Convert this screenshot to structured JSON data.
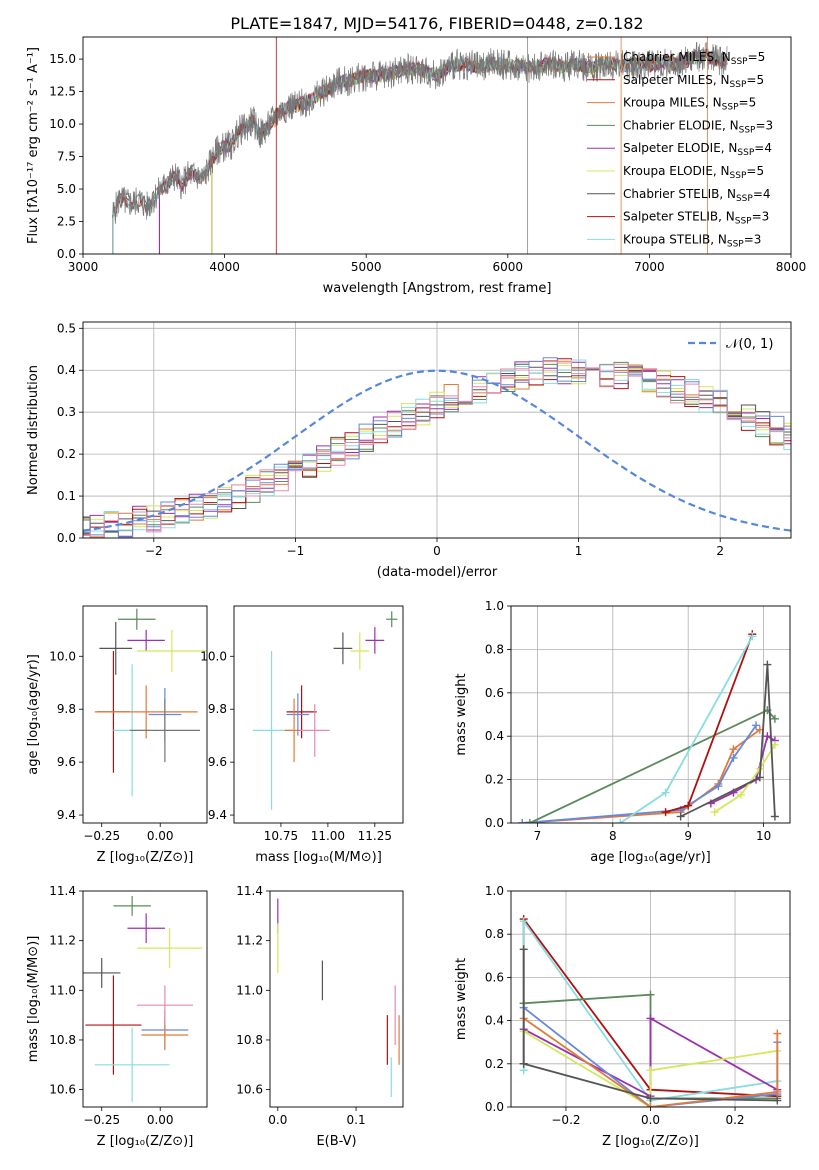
{
  "figure": {
    "title": "PLATE=1847, MJD=54176, FIBERID=0448, z=0.182",
    "colors": [
      "#e07b39",
      "#5b8a5b",
      "#9b30b0",
      "#d4e85a",
      "#555555",
      "#b01010",
      "#88dde0",
      "#6688dd",
      "#e88ab0",
      "#777777"
    ]
  },
  "chart_data": [
    {
      "id": "spectrum",
      "type": "line",
      "title": "PLATE=1847, MJD=54176, FIBERID=0448, z=0.182",
      "xlabel": "wavelength [Angstrom, rest frame]",
      "ylabel": "Flux [fλ10⁻¹⁷ erg cm⁻² s⁻¹ A⁻¹]",
      "xlim": [
        3000,
        8000
      ],
      "ylim": [
        0,
        16.7
      ],
      "xticks": [
        3000,
        4000,
        5000,
        6000,
        7000,
        8000
      ],
      "yticks": [
        0.0,
        2.5,
        5.0,
        7.5,
        10.0,
        12.5,
        15.0
      ],
      "legend_position": "top-right",
      "observed": {
        "x": [
          3210,
          3260,
          3300,
          3350,
          3400,
          3450,
          3500,
          3550,
          3600,
          3650,
          3700,
          3750,
          3800,
          3850,
          3900,
          3950,
          4000,
          4050,
          4100,
          4150,
          4200,
          4250,
          4300,
          4350,
          4400,
          4450,
          4500,
          4600,
          4700,
          4800,
          4900,
          5000,
          5100,
          5200,
          5300,
          5400,
          5500,
          5600,
          5700,
          5800,
          5900,
          6000,
          6100,
          6200,
          6300,
          6400,
          6500,
          6600,
          6700,
          6800,
          6900,
          7000,
          7100,
          7200,
          7300,
          7400,
          7500,
          7550
        ],
        "y": [
          3.0,
          4.3,
          4.0,
          3.9,
          4.2,
          3.6,
          4.3,
          5.0,
          5.5,
          6.0,
          5.3,
          6.2,
          6.0,
          5.8,
          7.0,
          8.0,
          8.3,
          8.4,
          9.5,
          9.7,
          10.3,
          9.2,
          9.7,
          10.5,
          11.0,
          11.4,
          11.4,
          11.8,
          12.5,
          13.2,
          13.4,
          13.7,
          13.7,
          14.0,
          14.3,
          14.1,
          13.8,
          14.5,
          14.6,
          14.4,
          14.7,
          14.5,
          14.4,
          14.3,
          14.7,
          14.4,
          14.6,
          14.3,
          14.7,
          14.5,
          14.6,
          14.5,
          14.8,
          14.6,
          15.0,
          15.3,
          14.8,
          15.0
        ]
      },
      "series": [
        {
          "name": "Chabrier MILES, N_SSP=5",
          "start": 3540
        },
        {
          "name": "Salpeter MILES, N_SSP=5",
          "start": 3540
        },
        {
          "name": "Kroupa MILES, N_SSP=5",
          "start": 3540
        },
        {
          "name": "Chabrier ELODIE, N_SSP=3",
          "start": 3910
        },
        {
          "name": "Salpeter ELODIE, N_SSP=4",
          "start": 3910
        },
        {
          "name": "Kroupa ELODIE, N_SSP=5",
          "start": 3910
        },
        {
          "name": "Chabrier STELIB, N_SSP=4",
          "start": 3210
        },
        {
          "name": "Salpeter STELIB, N_SSP=3",
          "start": 3210
        },
        {
          "name": "Kroupa STELIB, N_SSP=3",
          "start": 3210
        }
      ]
    },
    {
      "id": "residuals",
      "type": "step",
      "xlabel": "(data-model)/error",
      "ylabel": "Normed distribution",
      "xlim": [
        -2.5,
        2.5
      ],
      "ylim": [
        0,
        0.515
      ],
      "xticks": [
        -2,
        -1,
        0,
        1,
        2
      ],
      "yticks": [
        0.0,
        0.1,
        0.2,
        0.3,
        0.4,
        0.5
      ],
      "grid": true,
      "legend_position": "top-right",
      "legend": "𝒩(0, 1)",
      "bin_width": 0.1,
      "base": [
        0.025,
        0.028,
        0.032,
        0.036,
        0.041,
        0.047,
        0.054,
        0.062,
        0.071,
        0.081,
        0.092,
        0.103,
        0.116,
        0.129,
        0.143,
        0.158,
        0.173,
        0.189,
        0.206,
        0.222,
        0.239,
        0.256,
        0.272,
        0.288,
        0.304,
        0.319,
        0.333,
        0.346,
        0.357,
        0.368,
        0.377,
        0.385,
        0.391,
        0.395,
        0.398,
        0.399,
        0.398,
        0.395,
        0.391,
        0.385,
        0.377,
        0.368,
        0.357,
        0.346,
        0.333,
        0.319,
        0.304,
        0.288,
        0.272,
        0.256,
        0.239,
        0.222,
        0.206,
        0.189,
        0.173,
        0.158,
        0.143,
        0.129,
        0.116,
        0.103,
        0.092,
        0.081,
        0.071,
        0.062,
        0.054,
        0.047,
        0.041,
        0.036,
        0.032,
        0.028,
        0.025
      ]
    },
    {
      "id": "age-vs-z",
      "type": "scatter-errorbar",
      "xlabel": "Z [log₁₀(Z/Z⊙)]",
      "ylabel": "age  [log₁₀(age/yr)]",
      "xlim": [
        -0.33,
        0.2
      ],
      "ylim": [
        9.37,
        10.19
      ],
      "xticks": [
        -0.25,
        0.0
      ],
      "yticks": [
        9.4,
        9.6,
        9.8,
        10.0
      ],
      "points": [
        {
          "x": -0.19,
          "y": 10.03,
          "xerr": 0.07,
          "yerr": 0.1,
          "c": 4
        },
        {
          "x": -0.1,
          "y": 10.14,
          "xerr": 0.08,
          "yerr": 0.04,
          "c": 1
        },
        {
          "x": -0.06,
          "y": 10.06,
          "xerr": 0.08,
          "yerr": 0.04,
          "c": 2
        },
        {
          "x": 0.05,
          "y": 10.02,
          "xerr": 0.15,
          "yerr": 0.08,
          "c": 3
        },
        {
          "x": -0.2,
          "y": 9.79,
          "xerr": 0.07,
          "yerr": 0.23,
          "c": 5
        },
        {
          "x": -0.12,
          "y": 9.72,
          "xerr": 0.08,
          "yerr": 0.25,
          "c": 6
        },
        {
          "x": 0.02,
          "y": 9.78,
          "xerr": 0.07,
          "yerr": 0.1,
          "c": 7
        },
        {
          "x": -0.06,
          "y": 9.79,
          "xerr": 0.22,
          "yerr": 0.1,
          "c": 0
        },
        {
          "x": 0.02,
          "y": 9.72,
          "xerr": 0.15,
          "yerr": 0.12,
          "c": 9
        }
      ]
    },
    {
      "id": "age-vs-mass",
      "type": "scatter-errorbar",
      "xlabel": "mass [log₁₀(M/M⊙)]",
      "ylabel": "",
      "xlim": [
        10.5,
        11.4
      ],
      "ylim": [
        9.37,
        10.19
      ],
      "xticks": [
        10.75,
        11.0,
        11.25
      ],
      "xticklabels": [
        "10.75",
        "11.00",
        "11.25"
      ],
      "yticks": [
        9.4,
        9.6,
        9.8,
        10.0
      ],
      "points": [
        {
          "x": 11.08,
          "y": 10.03,
          "xerr": 0.05,
          "yerr": 0.06,
          "c": 4
        },
        {
          "x": 11.34,
          "y": 10.14,
          "xerr": 0.03,
          "yerr": 0.03,
          "c": 1
        },
        {
          "x": 11.25,
          "y": 10.06,
          "xerr": 0.05,
          "yerr": 0.05,
          "c": 2
        },
        {
          "x": 11.17,
          "y": 10.02,
          "xerr": 0.05,
          "yerr": 0.07,
          "c": 3
        },
        {
          "x": 10.86,
          "y": 9.79,
          "xerr": 0.08,
          "yerr": 0.1,
          "c": 5
        },
        {
          "x": 10.7,
          "y": 9.72,
          "xerr": 0.1,
          "yerr": 0.3,
          "c": 6
        },
        {
          "x": 10.84,
          "y": 9.78,
          "xerr": 0.06,
          "yerr": 0.08,
          "c": 7
        },
        {
          "x": 10.82,
          "y": 9.72,
          "xerr": 0.05,
          "yerr": 0.12,
          "c": 0
        },
        {
          "x": 10.93,
          "y": 9.72,
          "xerr": 0.08,
          "yerr": 0.1,
          "c": 8
        }
      ]
    },
    {
      "id": "mass-weight-vs-age",
      "type": "line",
      "xlabel": "age  [log₁₀(age/yr)]",
      "ylabel": "mass weight",
      "xlim": [
        6.65,
        10.35
      ],
      "ylim": [
        0,
        1.0
      ],
      "xticks": [
        7,
        8,
        9,
        10
      ],
      "yticks": [
        0.0,
        0.2,
        0.4,
        0.6,
        0.8,
        1.0
      ],
      "grid": true,
      "series": [
        {
          "c": 0,
          "x": [
            6.8,
            8.9,
            9.4,
            9.6,
            9.95
          ],
          "y": [
            0.0,
            0.05,
            0.18,
            0.34,
            0.43
          ]
        },
        {
          "c": 7,
          "x": [
            6.8,
            8.9,
            9.4,
            9.6,
            9.9
          ],
          "y": [
            0.0,
            0.06,
            0.17,
            0.3,
            0.45
          ]
        },
        {
          "c": 1,
          "x": [
            6.9,
            10.05,
            10.15
          ],
          "y": [
            0.0,
            0.52,
            0.48
          ]
        },
        {
          "c": 2,
          "x": [
            9.3,
            9.6,
            9.9,
            10.05,
            10.15
          ],
          "y": [
            0.09,
            0.14,
            0.2,
            0.4,
            0.38
          ]
        },
        {
          "c": 3,
          "x": [
            9.35,
            9.7,
            9.95,
            10.15
          ],
          "y": [
            0.05,
            0.13,
            0.25,
            0.36
          ]
        },
        {
          "c": 4,
          "x": [
            8.9,
            9.95,
            10.05,
            10.15
          ],
          "y": [
            0.03,
            0.21,
            0.73,
            0.03
          ]
        },
        {
          "c": 5,
          "x": [
            8.7,
            9.0,
            9.85
          ],
          "y": [
            0.05,
            0.08,
            0.87
          ]
        },
        {
          "c": 6,
          "x": [
            8.1,
            8.7,
            9.85
          ],
          "y": [
            0.0,
            0.14,
            0.86
          ]
        }
      ]
    },
    {
      "id": "mass-vs-z",
      "type": "scatter-errorbar",
      "xlabel": "Z [log₁₀(Z/Z⊙)]",
      "ylabel": "mass [log₁₀(M/M⊙)]",
      "xlim": [
        -0.33,
        0.2
      ],
      "ylim": [
        10.53,
        11.4
      ],
      "xticks": [
        -0.25,
        0.0
      ],
      "xticklabels": [
        "−0.25",
        "0.00"
      ],
      "yticks": [
        10.6,
        10.8,
        11.0,
        11.2,
        11.4
      ],
      "points": [
        {
          "x": -0.25,
          "y": 11.07,
          "xerr": 0.08,
          "yerr": 0.06,
          "c": 4
        },
        {
          "x": -0.12,
          "y": 11.34,
          "xerr": 0.08,
          "yerr": 0.04,
          "c": 1
        },
        {
          "x": -0.06,
          "y": 11.25,
          "xerr": 0.08,
          "yerr": 0.06,
          "c": 2
        },
        {
          "x": 0.04,
          "y": 11.17,
          "xerr": 0.14,
          "yerr": 0.08,
          "c": 3
        },
        {
          "x": -0.2,
          "y": 10.86,
          "xerr": 0.12,
          "yerr": 0.2,
          "c": 5
        },
        {
          "x": -0.12,
          "y": 10.7,
          "xerr": 0.16,
          "yerr": 0.15,
          "c": 6
        },
        {
          "x": 0.02,
          "y": 10.84,
          "xerr": 0.1,
          "yerr": 0.08,
          "c": 7
        },
        {
          "x": 0.02,
          "y": 10.82,
          "xerr": 0.1,
          "yerr": 0.06,
          "c": 0
        },
        {
          "x": 0.02,
          "y": 10.94,
          "xerr": 0.12,
          "yerr": 0.08,
          "c": 8
        }
      ]
    },
    {
      "id": "mass-vs-ebv",
      "type": "scatter-errorbar",
      "xlabel": "E(B-V)",
      "ylabel": "",
      "xlim": [
        -0.01,
        0.16
      ],
      "ylim": [
        10.53,
        11.4
      ],
      "xticks": [
        0.0,
        0.1
      ],
      "yticks": [
        10.6,
        10.8,
        11.0,
        11.2,
        11.4
      ],
      "points": [
        {
          "x": 0.0,
          "y": 11.3,
          "xerr": 0.0,
          "yerr": 0.07,
          "c": 2
        },
        {
          "x": 0.0,
          "y": 11.17,
          "xerr": 0.0,
          "yerr": 0.1,
          "c": 3
        },
        {
          "x": 0.057,
          "y": 11.04,
          "xerr": 0.0,
          "yerr": 0.08,
          "c": 4
        },
        {
          "x": 0.14,
          "y": 10.8,
          "xerr": 0.0,
          "yerr": 0.1,
          "c": 5
        },
        {
          "x": 0.145,
          "y": 10.65,
          "xerr": 0.0,
          "yerr": 0.08,
          "c": 6
        },
        {
          "x": 0.15,
          "y": 10.9,
          "xerr": 0.0,
          "yerr": 0.12,
          "c": 8
        },
        {
          "x": 0.155,
          "y": 10.8,
          "xerr": 0.0,
          "yerr": 0.1,
          "c": 0
        }
      ]
    },
    {
      "id": "mass-weight-vs-z",
      "type": "line",
      "xlabel": "Z [log₁₀(Z/Z⊙)]",
      "ylabel": "mass weight",
      "xlim": [
        -0.33,
        0.33
      ],
      "ylim": [
        0,
        1.0
      ],
      "xticks": [
        -0.2,
        0.0,
        0.2
      ],
      "yticks": [
        0.0,
        0.2,
        0.4,
        0.6,
        0.8,
        1.0
      ],
      "grid": true,
      "series": [
        {
          "c": 5,
          "x": [
            -0.3,
            -0.3,
            0.0,
            0.3
          ],
          "y": [
            0.2,
            0.87,
            0.08,
            0.05
          ]
        },
        {
          "c": 6,
          "x": [
            -0.3,
            -0.3,
            0.0,
            0.3
          ],
          "y": [
            0.17,
            0.86,
            0.03,
            0.12
          ]
        },
        {
          "c": 1,
          "x": [
            -0.3,
            -0.3,
            0.0,
            0.0,
            0.3
          ],
          "y": [
            0.48,
            0.48,
            0.52,
            0.04,
            0.04
          ]
        },
        {
          "c": 2,
          "x": [
            -0.3,
            0.0,
            0.0,
            0.3
          ],
          "y": [
            0.36,
            0.05,
            0.41,
            0.08
          ]
        },
        {
          "c": 3,
          "x": [
            -0.3,
            0.0,
            0.0,
            0.3
          ],
          "y": [
            0.35,
            0.0,
            0.17,
            0.26
          ]
        },
        {
          "c": 7,
          "x": [
            -0.3,
            0.0,
            0.3,
            0.3
          ],
          "y": [
            0.46,
            0.0,
            0.06,
            0.3
          ]
        },
        {
          "c": 0,
          "x": [
            -0.3,
            0.0,
            0.3,
            0.3
          ],
          "y": [
            0.41,
            0.0,
            0.07,
            0.34
          ]
        },
        {
          "c": 4,
          "x": [
            -0.3,
            -0.3,
            0.0,
            0.3
          ],
          "y": [
            0.73,
            0.2,
            0.04,
            0.03
          ]
        }
      ]
    }
  ]
}
